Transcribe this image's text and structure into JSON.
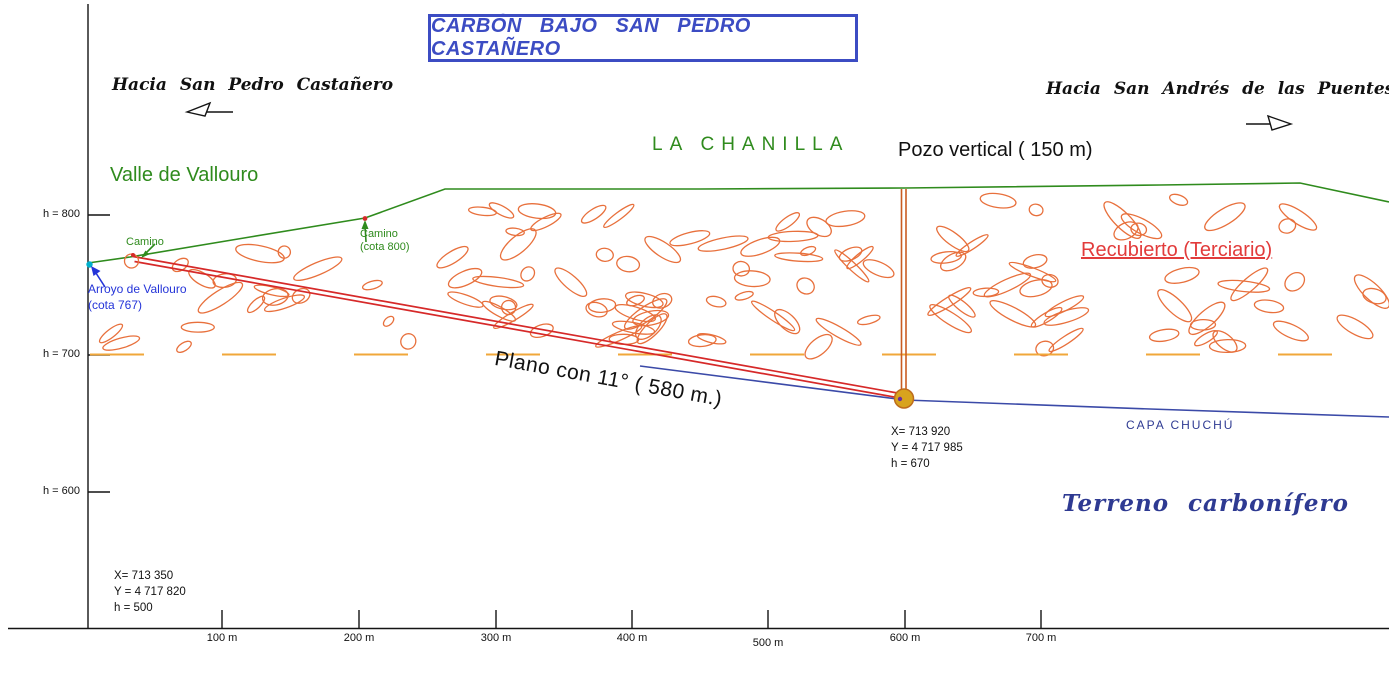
{
  "title": "CARBÓN BAJO SAN PEDRO CASTAÑERO",
  "directions": {
    "left": "Hacia San Pedro Castañero",
    "right": "Hacia San Andrés de las Puentes"
  },
  "surface": {
    "valle_label": "Valle de Vallouro",
    "chanilla_label": "LA CHANILLA",
    "pozo_label": "Pozo vertical ( 150 m)",
    "camino_label": "Camino",
    "camino_cota_line1": "Camino",
    "camino_cota_line2": "(cota 800)",
    "arroyo_line1": "Arroyo de Vallouro",
    "arroyo_line2": "(cota 767)"
  },
  "geology": {
    "recubierto_label": "Recubierto (Terciario)",
    "plano_label": "Plano con 11°  ( 580 m.)",
    "capa_label": "CAPA CHUCHÚ",
    "terreno_label": "Terreno carbonífero"
  },
  "survey_points": {
    "pozo_base": {
      "x": "X= 713 920",
      "y": "Y = 4 717 985",
      "h": "h = 670"
    },
    "origin": {
      "x": "X= 713 350",
      "y": "Y = 4 717 820",
      "h": "h = 500"
    }
  },
  "axis": {
    "elevation_ticks": [
      "h = 800",
      "h = 700",
      "h = 600"
    ],
    "distance_ticks": [
      "100 m",
      "200 m",
      "300 m",
      "400 m",
      "500 m",
      "600 m",
      "700 m"
    ]
  },
  "colors": {
    "title_blue": "#3c4cc3",
    "green": "#2f8b1d",
    "orange": "#e8703c",
    "dash_orange": "#f0a73a",
    "red": "#d62929",
    "label_red": "#e23b3b",
    "navy": "#2e3a92",
    "arrow_blue": "#2434d8",
    "capa_blue": "#3b4aa8",
    "cyan": "#00b0cc",
    "gold": "#d8a31e",
    "gold_edge": "#bd6b1d",
    "purple": "#6a2d9e",
    "pozo_orange": "#c95c22",
    "ink": "#141414"
  }
}
